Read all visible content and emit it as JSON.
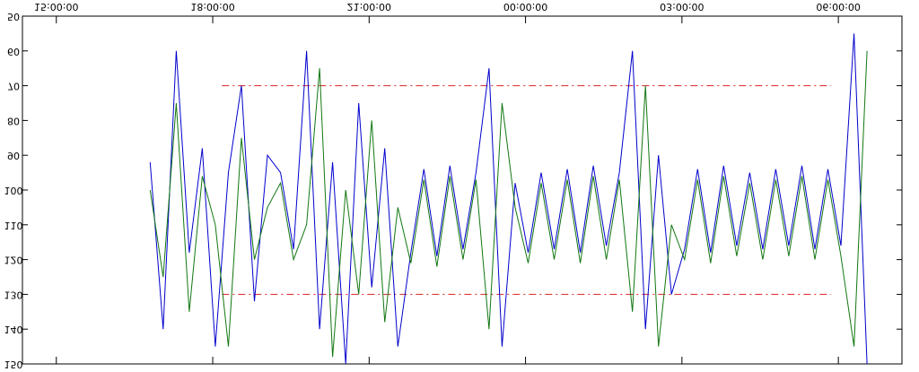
{
  "chart_data": {
    "type": "line",
    "x": [
      1.8,
      2.05,
      2.3,
      2.55,
      2.8,
      3.05,
      3.3,
      3.55,
      3.8,
      4.05,
      4.3,
      4.55,
      4.8,
      5.05,
      5.3,
      5.55,
      5.8,
      6.05,
      6.3,
      6.55,
      6.8,
      7.05,
      7.3,
      7.55,
      7.8,
      8.05,
      8.3,
      8.55,
      8.8,
      9.05,
      9.3,
      9.55,
      9.8,
      10.05,
      10.3,
      10.55,
      10.8,
      11.05,
      11.3,
      11.55,
      11.8,
      12.05,
      12.3,
      12.55,
      12.8,
      13.05,
      13.3,
      13.55,
      13.8,
      14.05,
      14.3,
      14.55,
      14.8,
      15.05,
      15.3,
      15.55
    ],
    "series": [
      {
        "color": "#0000cc",
        "values": [
          92,
          140,
          60,
          118,
          88,
          145,
          95,
          70,
          132,
          90,
          95,
          117,
          60,
          140,
          92,
          150,
          75,
          128,
          88,
          145,
          118,
          94,
          119,
          93,
          117,
          95,
          65,
          145,
          98,
          118,
          95,
          117,
          94,
          118,
          93,
          116,
          95,
          60,
          140,
          90,
          130,
          117,
          94,
          118,
          93,
          116,
          95,
          117,
          94,
          116,
          93,
          117,
          94,
          116,
          55,
          150
        ]
      },
      {
        "color": "#117711",
        "values": [
          100,
          125,
          75,
          135,
          96,
          110,
          145,
          85,
          120,
          105,
          98,
          120,
          110,
          65,
          148,
          100,
          130,
          80,
          138,
          105,
          121,
          97,
          122,
          96,
          120,
          97,
          140,
          75,
          105,
          121,
          98,
          120,
          97,
          121,
          96,
          120,
          97,
          135,
          70,
          145,
          110,
          120,
          97,
          121,
          96,
          119,
          98,
          120,
          97,
          119,
          96,
          120,
          97,
          119,
          145,
          60
        ]
      }
    ],
    "reference_lines": [
      70,
      130
    ],
    "reference_color": "#dd2222",
    "xlim": [
      -0.65,
      16.22
    ],
    "xticks": [
      {
        "value": 0,
        "label": "15:00:00"
      },
      {
        "value": 3,
        "label": "18:00:00"
      },
      {
        "value": 6,
        "label": "21:00:00"
      },
      {
        "value": 9,
        "label": "00:00:00"
      },
      {
        "value": 12,
        "label": "03:00:00"
      },
      {
        "value": 15,
        "label": "06:00:00"
      }
    ],
    "ylim": [
      50,
      150
    ],
    "yticks": [
      50,
      60,
      70,
      80,
      90,
      100,
      110,
      120,
      130,
      140,
      150
    ]
  }
}
